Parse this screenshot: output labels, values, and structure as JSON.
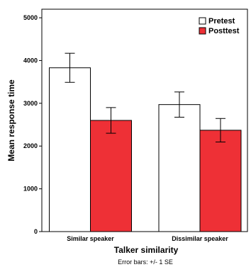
{
  "chart_data": {
    "type": "bar",
    "categories": [
      "Similar speaker",
      "Dissimilar speaker"
    ],
    "series": [
      {
        "name": "Pretest",
        "color": "#ffffff",
        "values": [
          3830,
          2970
        ],
        "error": [
          340,
          295
        ]
      },
      {
        "name": "Posttest",
        "color": "#ee3036",
        "values": [
          2600,
          2370
        ],
        "error": [
          300,
          275
        ]
      }
    ],
    "xlabel": "Talker similarity",
    "ylabel": "Mean response time",
    "yticks": [
      "0",
      "1000",
      "2000",
      "3000",
      "4000",
      "5000"
    ],
    "ylim": [
      0,
      5200
    ],
    "grid": false,
    "legend_position": "top-right",
    "note": "Error bars: +/- 1 SE"
  }
}
